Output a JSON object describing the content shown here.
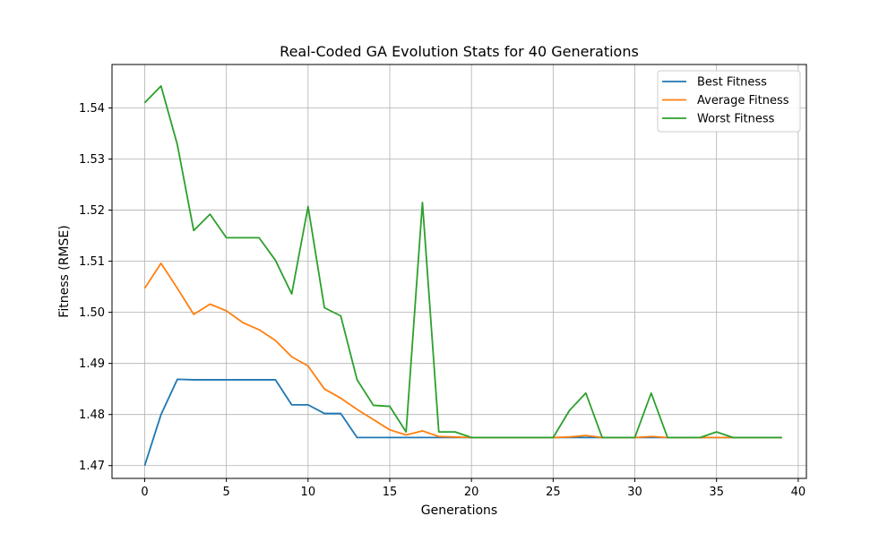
{
  "chart_data": {
    "type": "line",
    "title": "Real-Coded GA Evolution Stats for 40 Generations",
    "xlabel": "Generations",
    "ylabel": "Fitness (RMSE)",
    "xlim": [
      -2,
      40.5
    ],
    "ylim": [
      1.4675,
      1.5485
    ],
    "xticks": [
      0,
      5,
      10,
      15,
      20,
      25,
      30,
      35,
      40
    ],
    "yticks": [
      1.47,
      1.48,
      1.49,
      1.5,
      1.51,
      1.52,
      1.53,
      1.54
    ],
    "ytick_labels": [
      "1.47",
      "1.48",
      "1.49",
      "1.50",
      "1.51",
      "1.52",
      "1.53",
      "1.54"
    ],
    "grid": true,
    "legend_position": "top-right",
    "x": [
      0,
      1,
      2,
      3,
      4,
      5,
      6,
      7,
      8,
      9,
      10,
      11,
      12,
      13,
      14,
      15,
      16,
      17,
      18,
      19,
      20,
      21,
      22,
      23,
      24,
      25,
      26,
      27,
      28,
      29,
      30,
      31,
      32,
      33,
      34,
      35,
      36,
      37,
      38,
      39
    ],
    "series": [
      {
        "name": "Best Fitness",
        "color": "#1f77b4",
        "values": [
          1.47,
          1.48,
          1.4869,
          1.4868,
          1.4868,
          1.4868,
          1.4868,
          1.4868,
          1.4868,
          1.4819,
          1.4819,
          1.4802,
          1.4802,
          1.4755,
          1.4755,
          1.4755,
          1.4755,
          1.4755,
          1.4755,
          1.4755,
          1.4755,
          1.4755,
          1.4755,
          1.4755,
          1.4755,
          1.4755,
          1.4755,
          1.4755,
          1.4755,
          1.4755,
          1.4755,
          1.4755,
          1.4755,
          1.4755,
          1.4755,
          1.4755,
          1.4755,
          1.4755,
          1.4755,
          1.4755
        ]
      },
      {
        "name": "Average Fitness",
        "color": "#ff7f0e",
        "values": [
          1.5047,
          1.5096,
          1.5047,
          1.4996,
          1.5016,
          1.5003,
          1.498,
          1.4966,
          1.4945,
          1.4913,
          1.4895,
          1.485,
          1.4832,
          1.481,
          1.479,
          1.477,
          1.476,
          1.4768,
          1.4757,
          1.4756,
          1.4755,
          1.4755,
          1.4755,
          1.4755,
          1.4755,
          1.4755,
          1.4756,
          1.4759,
          1.4755,
          1.4755,
          1.4755,
          1.4757,
          1.4755,
          1.4755,
          1.4755,
          1.4755,
          1.4755,
          1.4755,
          1.4755,
          1.4755
        ]
      },
      {
        "name": "Worst Fitness",
        "color": "#2ca02c",
        "values": [
          1.541,
          1.5443,
          1.5328,
          1.516,
          1.5192,
          1.5146,
          1.5146,
          1.5146,
          1.5102,
          1.5036,
          1.5207,
          1.5009,
          1.4993,
          1.4868,
          1.4818,
          1.4816,
          1.4766,
          1.5215,
          1.4766,
          1.4766,
          1.4755,
          1.4755,
          1.4755,
          1.4755,
          1.4755,
          1.4755,
          1.4808,
          1.4842,
          1.4755,
          1.4755,
          1.4755,
          1.4842,
          1.4755,
          1.4755,
          1.4755,
          1.4766,
          1.4755,
          1.4755,
          1.4755,
          1.4755
        ]
      }
    ]
  }
}
